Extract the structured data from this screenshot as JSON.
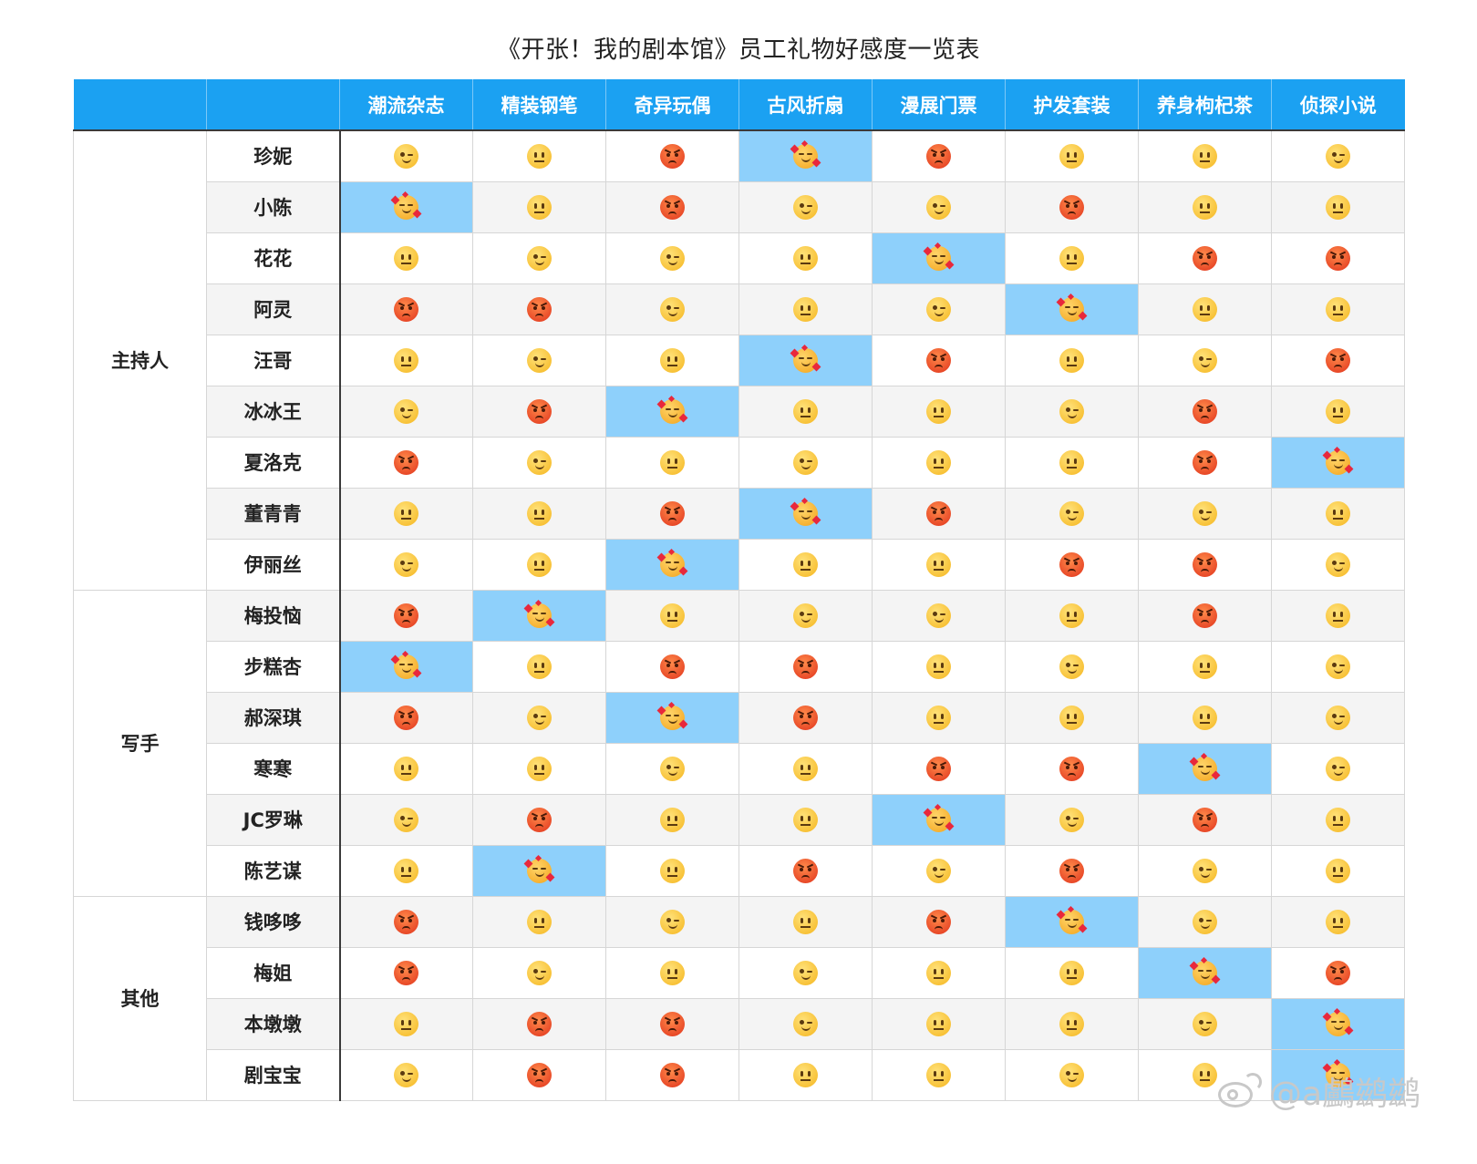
{
  "title": "《开张！我的剧本馆》员工礼物好感度一览表",
  "gifts": [
    "潮流杂志",
    "精装钢笔",
    "奇异玩偶",
    "古风折扇",
    "漫展门票",
    "护发套装",
    "养身枸杞茶",
    "侦探小说"
  ],
  "reaction_icons": {
    "love": "smiling-face-with-hearts-icon",
    "like": "winking-face-icon",
    "neutral": "neutral-face-icon",
    "dislike": "angry-face-icon"
  },
  "colors": {
    "header_bg": "#1ba1f2",
    "love_highlight": "#8ed0fb",
    "stripe": "#f4f4f4"
  },
  "groups": [
    {
      "label": "主持人",
      "rows": [
        {
          "name": "珍妮",
          "reactions": [
            "like",
            "neutral",
            "dislike",
            "love",
            "dislike",
            "neutral",
            "neutral",
            "like"
          ]
        },
        {
          "name": "小陈",
          "reactions": [
            "love",
            "neutral",
            "dislike",
            "like",
            "like",
            "dislike",
            "neutral",
            "neutral"
          ]
        },
        {
          "name": "花花",
          "reactions": [
            "neutral",
            "like",
            "like",
            "neutral",
            "love",
            "neutral",
            "dislike",
            "dislike"
          ]
        },
        {
          "name": "阿灵",
          "reactions": [
            "dislike",
            "dislike",
            "like",
            "neutral",
            "like",
            "love",
            "neutral",
            "neutral"
          ]
        },
        {
          "name": "汪哥",
          "reactions": [
            "neutral",
            "like",
            "neutral",
            "love",
            "dislike",
            "neutral",
            "like",
            "dislike"
          ]
        },
        {
          "name": "冰冰王",
          "reactions": [
            "like",
            "dislike",
            "love",
            "neutral",
            "neutral",
            "like",
            "dislike",
            "neutral"
          ]
        },
        {
          "name": "夏洛克",
          "reactions": [
            "dislike",
            "like",
            "neutral",
            "like",
            "neutral",
            "neutral",
            "dislike",
            "love"
          ]
        },
        {
          "name": "董青青",
          "reactions": [
            "neutral",
            "neutral",
            "dislike",
            "love",
            "dislike",
            "like",
            "like",
            "neutral"
          ]
        },
        {
          "name": "伊丽丝",
          "reactions": [
            "like",
            "neutral",
            "love",
            "neutral",
            "neutral",
            "dislike",
            "dislike",
            "like"
          ]
        }
      ]
    },
    {
      "label": "写手",
      "rows": [
        {
          "name": "梅投恼",
          "reactions": [
            "dislike",
            "love",
            "neutral",
            "like",
            "like",
            "neutral",
            "dislike",
            "neutral"
          ]
        },
        {
          "name": "步糕杏",
          "reactions": [
            "love",
            "neutral",
            "dislike",
            "dislike",
            "neutral",
            "like",
            "neutral",
            "like"
          ]
        },
        {
          "name": "郝深琪",
          "reactions": [
            "dislike",
            "like",
            "love",
            "dislike",
            "neutral",
            "neutral",
            "neutral",
            "like"
          ]
        },
        {
          "name": "寒寒",
          "reactions": [
            "neutral",
            "neutral",
            "like",
            "neutral",
            "dislike",
            "dislike",
            "love",
            "like"
          ]
        },
        {
          "name": "JC罗琳",
          "reactions": [
            "like",
            "dislike",
            "neutral",
            "neutral",
            "love",
            "like",
            "dislike",
            "neutral"
          ]
        },
        {
          "name": "陈艺谋",
          "reactions": [
            "neutral",
            "love",
            "neutral",
            "dislike",
            "like",
            "dislike",
            "like",
            "neutral"
          ]
        }
      ]
    },
    {
      "label": "其他",
      "rows": [
        {
          "name": "钱哆哆",
          "reactions": [
            "dislike",
            "neutral",
            "like",
            "neutral",
            "dislike",
            "love",
            "like",
            "neutral"
          ]
        },
        {
          "name": "梅姐",
          "reactions": [
            "dislike",
            "like",
            "neutral",
            "like",
            "neutral",
            "neutral",
            "love",
            "dislike"
          ]
        },
        {
          "name": "本墩墩",
          "reactions": [
            "neutral",
            "dislike",
            "dislike",
            "like",
            "neutral",
            "neutral",
            "like",
            "love"
          ]
        },
        {
          "name": "剧宝宝",
          "reactions": [
            "like",
            "dislike",
            "dislike",
            "neutral",
            "neutral",
            "like",
            "neutral",
            "love"
          ]
        }
      ]
    }
  ],
  "watermark": "@a鸕鹚鹚"
}
